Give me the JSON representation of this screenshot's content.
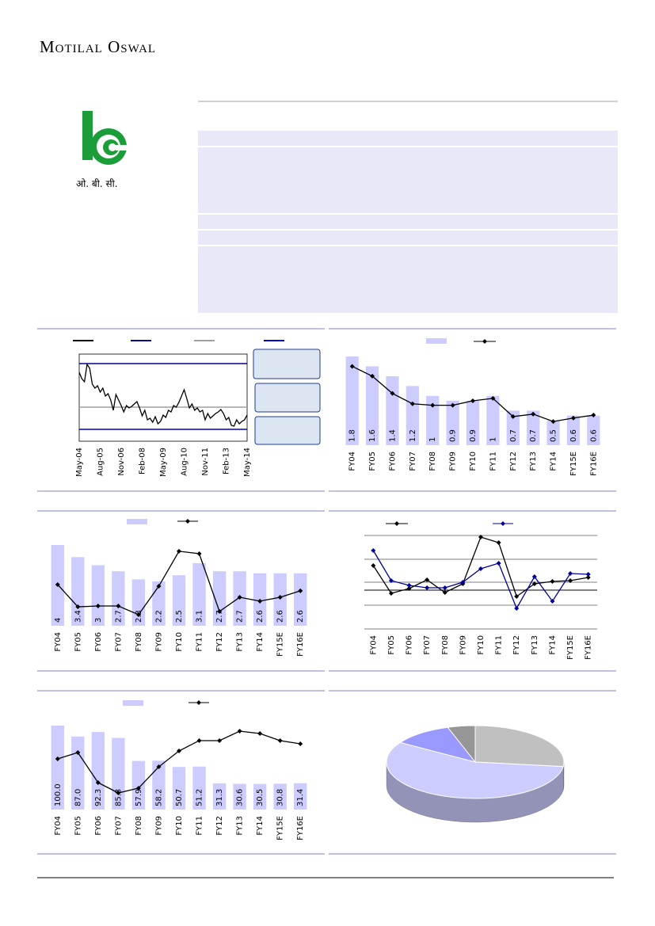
{
  "header": {
    "brand": "Motilal Oswal"
  },
  "logo": {
    "text": "ओ. बी. सी."
  },
  "chart_data": [
    {
      "type": "line",
      "xticks": [
        "May-04",
        "Aug-05",
        "Nov-06",
        "Feb-08",
        "May-09",
        "Aug-10",
        "Nov-11",
        "Feb-13",
        "May-14"
      ],
      "ylim": [
        0,
        110
      ],
      "series": [
        {
          "color": "#000000",
          "values": [
            87,
            79,
            75,
            97,
            92,
            72,
            67,
            70,
            62,
            67,
            57,
            60,
            52,
            39,
            59,
            52,
            45,
            37,
            45,
            42,
            44,
            47,
            50,
            42,
            32,
            39,
            27,
            29,
            24,
            31,
            22,
            25,
            33,
            30,
            39,
            37,
            45,
            43,
            49,
            57,
            65,
            54,
            42,
            47,
            39,
            42,
            37,
            39,
            27,
            35,
            29,
            32,
            35,
            37,
            40,
            35,
            27,
            30,
            20,
            19,
            27,
            22,
            25,
            27,
            33
          ]
        }
      ],
      "hlines": [
        {
          "value": 98,
          "color": "#00008b"
        },
        {
          "value": 43,
          "color": "#a0a0a0"
        },
        {
          "value": 15,
          "color": "#0000cc"
        }
      ]
    },
    {
      "type": "bar_line",
      "categories": [
        "FY04",
        "FY05",
        "FY06",
        "FY07",
        "FY08",
        "FY09",
        "FY10",
        "FY11",
        "FY12",
        "FY13",
        "FY14",
        "FY15E",
        "FY16E"
      ],
      "ylim": [
        0,
        1.8
      ],
      "series": [
        {
          "type": "bar",
          "color": "#ccccff",
          "values": [
            1.8,
            1.6,
            1.4,
            1.2,
            1.0,
            0.9,
            0.9,
            1.0,
            0.7,
            0.7,
            0.5,
            0.6,
            0.6
          ]
        },
        {
          "type": "line",
          "color": "#000000",
          "values": [
            1.6,
            1.4,
            1.05,
            0.84,
            0.81,
            0.81,
            0.9,
            0.95,
            0.58,
            0.63,
            0.48,
            0.55,
            0.61
          ]
        }
      ]
    },
    {
      "type": "bar_line",
      "categories": [
        "FY04",
        "FY05",
        "FY06",
        "FY07",
        "FY08",
        "FY09",
        "FY10",
        "FY11",
        "FY12",
        "FY13",
        "FY14",
        "FY15E",
        "FY16E"
      ],
      "ylim": [
        0,
        4.0
      ],
      "series": [
        {
          "type": "bar",
          "color": "#ccccff",
          "values": [
            4.0,
            3.4,
            3.0,
            2.7,
            2.3,
            2.2,
            2.5,
            3.1,
            2.7,
            2.7,
            2.6,
            2.6,
            2.6
          ]
        },
        {
          "type": "line",
          "color": "#000000",
          "values": [
            2.04,
            0.94,
            0.98,
            0.98,
            0.55,
            1.96,
            3.69,
            3.57,
            0.71,
            1.41,
            1.22,
            1.41,
            1.73
          ]
        }
      ]
    },
    {
      "type": "line",
      "categories": [
        "FY04",
        "FY05",
        "FY06",
        "FY07",
        "FY08",
        "FY09",
        "FY10",
        "FY11",
        "FY12",
        "FY13",
        "FY14",
        "FY15E",
        "FY16E"
      ],
      "ylim": [
        -49,
        69
      ],
      "series": [
        {
          "color": "#000000",
          "values": [
            31,
            -4,
            2,
            13,
            -3,
            8,
            67,
            60,
            -8,
            8,
            11,
            12,
            16
          ]
        },
        {
          "color": "#000099",
          "values": [
            50,
            12,
            6,
            3,
            3,
            10,
            27,
            34,
            -23,
            17,
            -14,
            21,
            20
          ]
        }
      ]
    },
    {
      "type": "bar_line",
      "categories": [
        "FY04",
        "FY05",
        "FY06",
        "FY07",
        "FY08",
        "FY09",
        "FY10",
        "FY11",
        "FY12",
        "FY13",
        "FY14",
        "FY15E",
        "FY16E"
      ],
      "ylim": [
        0,
        100
      ],
      "series": [
        {
          "type": "bar",
          "color": "#ccccff",
          "values": [
            100.0,
            87.0,
            92.3,
            85.3,
            57.9,
            58.2,
            50.7,
            51.2,
            31.3,
            30.6,
            30.5,
            30.8,
            31.4
          ],
          "value_labels": [
            "100.0",
            "87.0",
            "92.3",
            "85.3",
            "57.9",
            "58.2",
            "50.7",
            "51.2",
            "31.3",
            "30.6",
            "30.5",
            "30.8",
            "31.4"
          ]
        },
        {
          "type": "line",
          "color": "#000000",
          "values": [
            60.4,
            67.9,
            32.1,
            19.8,
            25.5,
            50.9,
            69.8,
            82.1,
            82.1,
            93.4,
            90.6,
            82.1,
            78.3
          ]
        }
      ]
    },
    {
      "type": "pie",
      "values": [
        27,
        57,
        11,
        5
      ],
      "colors": [
        "#c0c0c0",
        "#ccccff",
        "#9999ff",
        "#969696"
      ]
    }
  ]
}
